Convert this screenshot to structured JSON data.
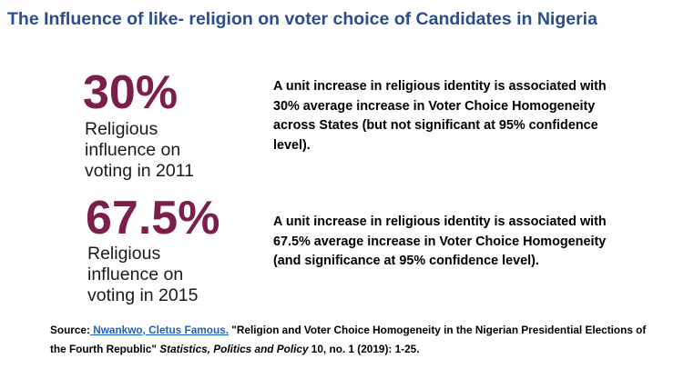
{
  "title": "The Influence of like- religion on voter choice of Candidates in Nigeria",
  "stats": [
    {
      "value": "30%",
      "caption_lines": [
        "Religious",
        "influence on",
        "voting in 2011"
      ],
      "description_lines": [
        "A unit increase in religious identity is associated with",
        "30%  average increase in Voter Choice Homogeneity",
        "across States (but not significant at 95% confidence",
        "level)."
      ]
    },
    {
      "value": "67.5%",
      "caption_lines": [
        "Religious",
        "influence on",
        "voting in 2015"
      ],
      "description_lines": [
        "A unit increase in religious identity is associated with",
        "67.5% average increase in Voter Choice Homogeneity",
        "(and significance at 95% confidence level)."
      ]
    }
  ],
  "source": {
    "label": "Source:",
    "author_link": " Nwankwo, Cletus Famous.",
    "title_text": " \"Religion and Voter Choice Homogeneity in the Nigerian Presidential Elections of",
    "title_text_2": "the Fourth Republic\" ",
    "journal": "Statistics, Politics and Policy",
    "citation_tail": " 10, no. 1 (2019): 1-25."
  },
  "colors": {
    "title": "#2a4d8f",
    "stat": "#7b1f4a",
    "link": "#1a5fc8"
  }
}
